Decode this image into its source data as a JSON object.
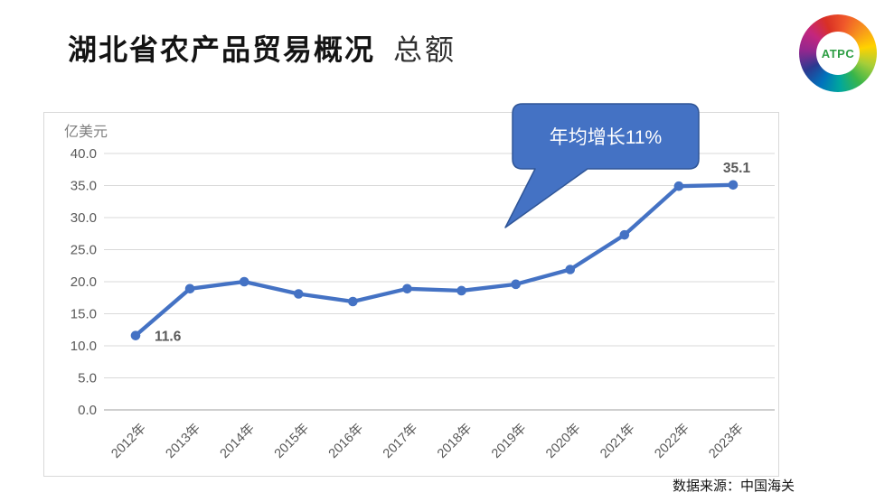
{
  "header": {
    "title": "湖北省农产品贸易概况",
    "subtitle": "总额",
    "logo_text": "ATPC"
  },
  "footer": {
    "source": "数据来源：中国海关"
  },
  "chart_data": {
    "type": "line",
    "title": "湖北省农产品贸易总额",
    "unit_label": "亿美元",
    "categories": [
      "2012年",
      "2013年",
      "2014年",
      "2015年",
      "2016年",
      "2017年",
      "2018年",
      "2019年",
      "2020年",
      "2021年",
      "2022年",
      "2023年"
    ],
    "series": [
      {
        "name": "总额",
        "values": [
          11.6,
          18.9,
          20.0,
          18.1,
          16.9,
          18.9,
          18.6,
          19.6,
          21.9,
          27.3,
          34.9,
          35.1
        ]
      }
    ],
    "ylim": [
      0,
      40
    ],
    "ytick_step": 5,
    "yticks": [
      "0.0",
      "5.0",
      "10.0",
      "15.0",
      "20.0",
      "25.0",
      "30.0",
      "35.0",
      "40.0"
    ],
    "grid": true,
    "legend": "none",
    "annotation": "年均增长11%",
    "data_labels": {
      "first": "11.6",
      "last": "35.1"
    },
    "colors": {
      "line": "#4472c4",
      "grid": "#d9d9d9",
      "axis": "#bfbfbf",
      "tick_text": "#595959",
      "unit_text": "#7f7f7f",
      "data_label_text": "#595959",
      "callout_fill": "#4472c4",
      "callout_border": "#2f5597"
    }
  }
}
